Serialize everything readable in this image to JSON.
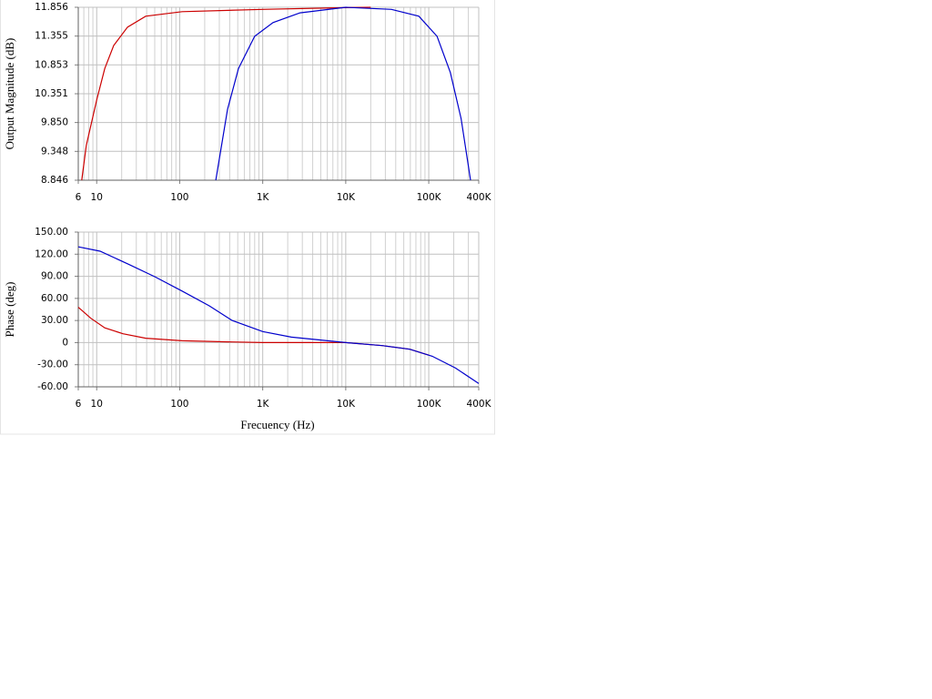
{
  "chart_data": [
    {
      "type": "line",
      "ylabel": "Output Magnitude (dB)",
      "xscale": "log",
      "grid": true,
      "minor_grid": true,
      "xlim": [
        6,
        400000
      ],
      "ylim": [
        8.846,
        11.856
      ],
      "xticks": [
        6,
        10,
        100,
        {
          "value": 1000,
          "label": "1K"
        },
        {
          "value": 10000,
          "label": "10K"
        },
        {
          "value": 100000,
          "label": "100K"
        },
        {
          "value": 400000,
          "label": "400K"
        }
      ],
      "yticks": [
        8.846,
        9.348,
        {
          "value": 9.85,
          "label": "9.850"
        },
        10.351,
        10.853,
        11.355,
        11.856
      ],
      "series": [
        {
          "color": "#cc0000",
          "x": [
            6.6,
            7.5,
            10,
            12.5,
            16,
            23.5,
            39,
            107,
            1000,
            10000,
            20000
          ],
          "values": [
            8.846,
            9.45,
            10.24,
            10.79,
            11.19,
            11.51,
            11.7,
            11.78,
            11.82,
            11.85,
            11.856
          ]
        },
        {
          "color": "#0000cc",
          "x": [
            272,
            377,
            510,
            800,
            1330,
            2820,
            10000,
            35500,
            76000,
            126000,
            182000,
            245000,
            319000
          ],
          "values": [
            8.846,
            10.08,
            10.79,
            11.35,
            11.59,
            11.76,
            11.856,
            11.82,
            11.7,
            11.35,
            10.72,
            9.92,
            8.846
          ]
        }
      ]
    },
    {
      "type": "line",
      "ylabel": "Phase (deg)",
      "xlabel": "Frecuency (Hz)",
      "xscale": "log",
      "grid": true,
      "minor_grid": true,
      "xlim": [
        6,
        400000
      ],
      "ylim": [
        -60,
        150
      ],
      "xticks": [
        6,
        10,
        100,
        {
          "value": 1000,
          "label": "1K"
        },
        {
          "value": 10000,
          "label": "10K"
        },
        {
          "value": 100000,
          "label": "100K"
        },
        {
          "value": 400000,
          "label": "400K"
        }
      ],
      "yticks": [
        {
          "value": 150,
          "label": "150.00"
        },
        {
          "value": 120,
          "label": "120.00"
        },
        {
          "value": 90,
          "label": "90.00"
        },
        {
          "value": 60,
          "label": "60.00"
        },
        {
          "value": 30,
          "label": "30.00"
        },
        0,
        {
          "value": -30,
          "label": "-30.00"
        },
        {
          "value": -60,
          "label": "-60.00"
        }
      ],
      "series": [
        {
          "color": "#cc0000",
          "x": [
            6,
            8.5,
            12.5,
            20.7,
            39,
            107,
            377,
            1000,
            10000,
            27500,
            59000,
            100000
          ],
          "values": [
            48,
            33,
            20,
            12,
            6,
            2.5,
            1,
            0,
            0,
            -4,
            -9,
            -17
          ]
        },
        {
          "color": "#0000cc",
          "x": [
            6,
            11,
            23.5,
            50,
            107,
            227,
            428,
            1000,
            2210,
            10000,
            27500,
            59000,
            110000,
            210000,
            400000
          ],
          "values": [
            130,
            124,
            107,
            89.5,
            70,
            50,
            30,
            15,
            7.4,
            0,
            -4,
            -9,
            -18.5,
            -34.6,
            -55.6
          ]
        }
      ]
    }
  ]
}
